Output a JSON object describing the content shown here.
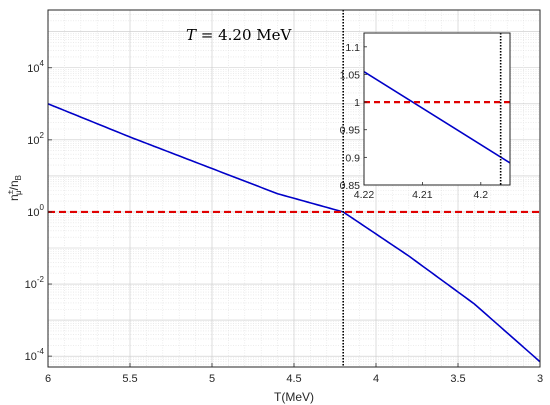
{
  "chart_data": [
    {
      "type": "line",
      "panel": "main",
      "xlabel": "T(MeV)",
      "ylabel_base": "n",
      "ylabel_sub1": "μ",
      "ylabel_sup1": "±",
      "ylabel_slash": "/n",
      "ylabel_sub2": "B",
      "xlim": [
        6,
        3
      ],
      "x_reversed": true,
      "ylim": [
        5e-05,
        400000
      ],
      "y_scale": "log",
      "grid": true,
      "minor_grid": true,
      "x_ticks": [
        6,
        5.5,
        5,
        4.5,
        4,
        3.5,
        3
      ],
      "x_tick_labels": [
        "6",
        "5.5",
        "5",
        "4.5",
        "4",
        "3.5",
        "3"
      ],
      "y_tick_base": [
        "10",
        "10",
        "10",
        "10",
        "10"
      ],
      "y_tick_exp": [
        "-4",
        "-2",
        "0",
        "2",
        "4"
      ],
      "y_tick_values": [
        0.0001,
        0.01,
        1,
        100,
        10000
      ],
      "annotation_lhs": "T = ",
      "annotation_rhs": "4.20 MeV",
      "series": [
        {
          "style": "solid",
          "color": "#0000c8",
          "x": [
            6.0,
            5.5,
            5.0,
            4.6,
            4.2,
            3.8,
            3.4,
            3.0
          ],
          "y": [
            1000,
            120,
            16,
            3.2,
            1.0,
            0.06,
            0.0028,
            7e-05
          ]
        },
        {
          "style": "dashed",
          "color": "#e00000",
          "x": [
            6,
            3
          ],
          "y": [
            1,
            1
          ]
        },
        {
          "style": "dotted-vertical",
          "color": "#000000",
          "x": [
            4.2,
            4.2
          ],
          "y": [
            5e-05,
            400000
          ]
        }
      ]
    },
    {
      "type": "line",
      "panel": "inset",
      "xlim": [
        4.22,
        4.195
      ],
      "x_reversed": true,
      "ylim": [
        0.85,
        1.125
      ],
      "grid": false,
      "x_ticks": [
        4.22,
        4.21,
        4.2
      ],
      "x_tick_labels": [
        "4.22",
        "4.21",
        "4.2"
      ],
      "y_ticks": [
        0.85,
        0.9,
        0.95,
        1,
        1.05,
        1.1
      ],
      "y_tick_labels": [
        "0.85",
        "0.9",
        "0.95",
        "1",
        "1.05",
        "1.1"
      ],
      "series": [
        {
          "style": "solid",
          "color": "#0000c8",
          "x": [
            4.22,
            4.195
          ],
          "y": [
            1.055,
            0.89
          ]
        },
        {
          "style": "dashed",
          "color": "#e00000",
          "x": [
            4.22,
            4.195
          ],
          "y": [
            1,
            1
          ]
        },
        {
          "style": "dotted-vertical",
          "color": "#000000",
          "x": [
            4.1966,
            4.1966
          ],
          "y": [
            0.85,
            1.125
          ]
        }
      ]
    }
  ]
}
